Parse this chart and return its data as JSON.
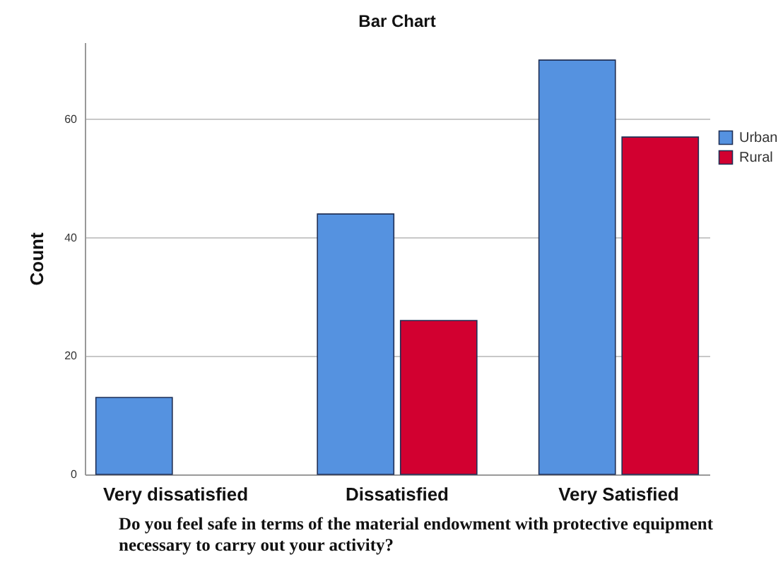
{
  "chart_data": {
    "type": "bar",
    "title": "Bar Chart",
    "xlabel": "Do you feel safe in terms of the material endowment with protective equipment necessary to carry out your activity?",
    "ylabel": "Count",
    "categories": [
      "Very dissatisfied",
      "Dissatisfied",
      "Very Satisfied"
    ],
    "series": [
      {
        "name": "Urban",
        "color": "#5592e0",
        "values": [
          13,
          44,
          70
        ]
      },
      {
        "name": "Rural",
        "color": "#d20030",
        "values": [
          null,
          26,
          57
        ]
      }
    ],
    "ylim": [
      0,
      73
    ],
    "yticks": [
      0,
      20,
      40,
      60
    ],
    "grid": "y",
    "legend": "right"
  }
}
